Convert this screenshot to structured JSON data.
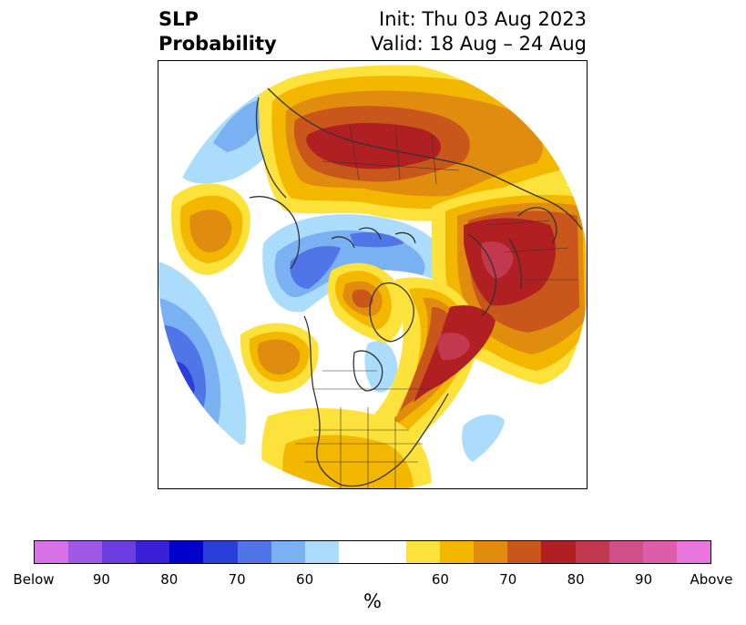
{
  "title": {
    "left_line1": "SLP",
    "left_line2": "Probability",
    "right_line1": "Init: Thu 03 Aug 2023",
    "right_line2": "Valid: 18 Aug – 24 Aug"
  },
  "colorbar": {
    "unit": "%",
    "colors": [
      "#d773e6",
      "#a057e3",
      "#6d3ddf",
      "#3a1fd8",
      "#0000cc",
      "#2a3fd9",
      "#4f75e6",
      "#7ab1f2",
      "#abdcfb",
      "#ffffff",
      "#ffffff",
      "#fde23b",
      "#f4b700",
      "#e08c0e",
      "#c9561a",
      "#b02022",
      "#c2384e",
      "#d04f88",
      "#dd5ea8",
      "#e775dd"
    ],
    "ticks": [
      "Below",
      "90",
      "80",
      "70",
      "60",
      "60",
      "70",
      "80",
      "90",
      "Above"
    ]
  },
  "map": {
    "colors": {
      "below_light": "#abdcfb",
      "below_mid": "#7ab1f2",
      "below_strong": "#4f75e6",
      "below_stronger": "#2a3fd9",
      "above_light": "#fde23b",
      "above_mid": "#f4b700",
      "above_strong": "#e08c0e",
      "above_stronger": "#c9561a",
      "above_80": "#b02022",
      "above_85": "#c2384e",
      "coast": "#333333"
    }
  }
}
